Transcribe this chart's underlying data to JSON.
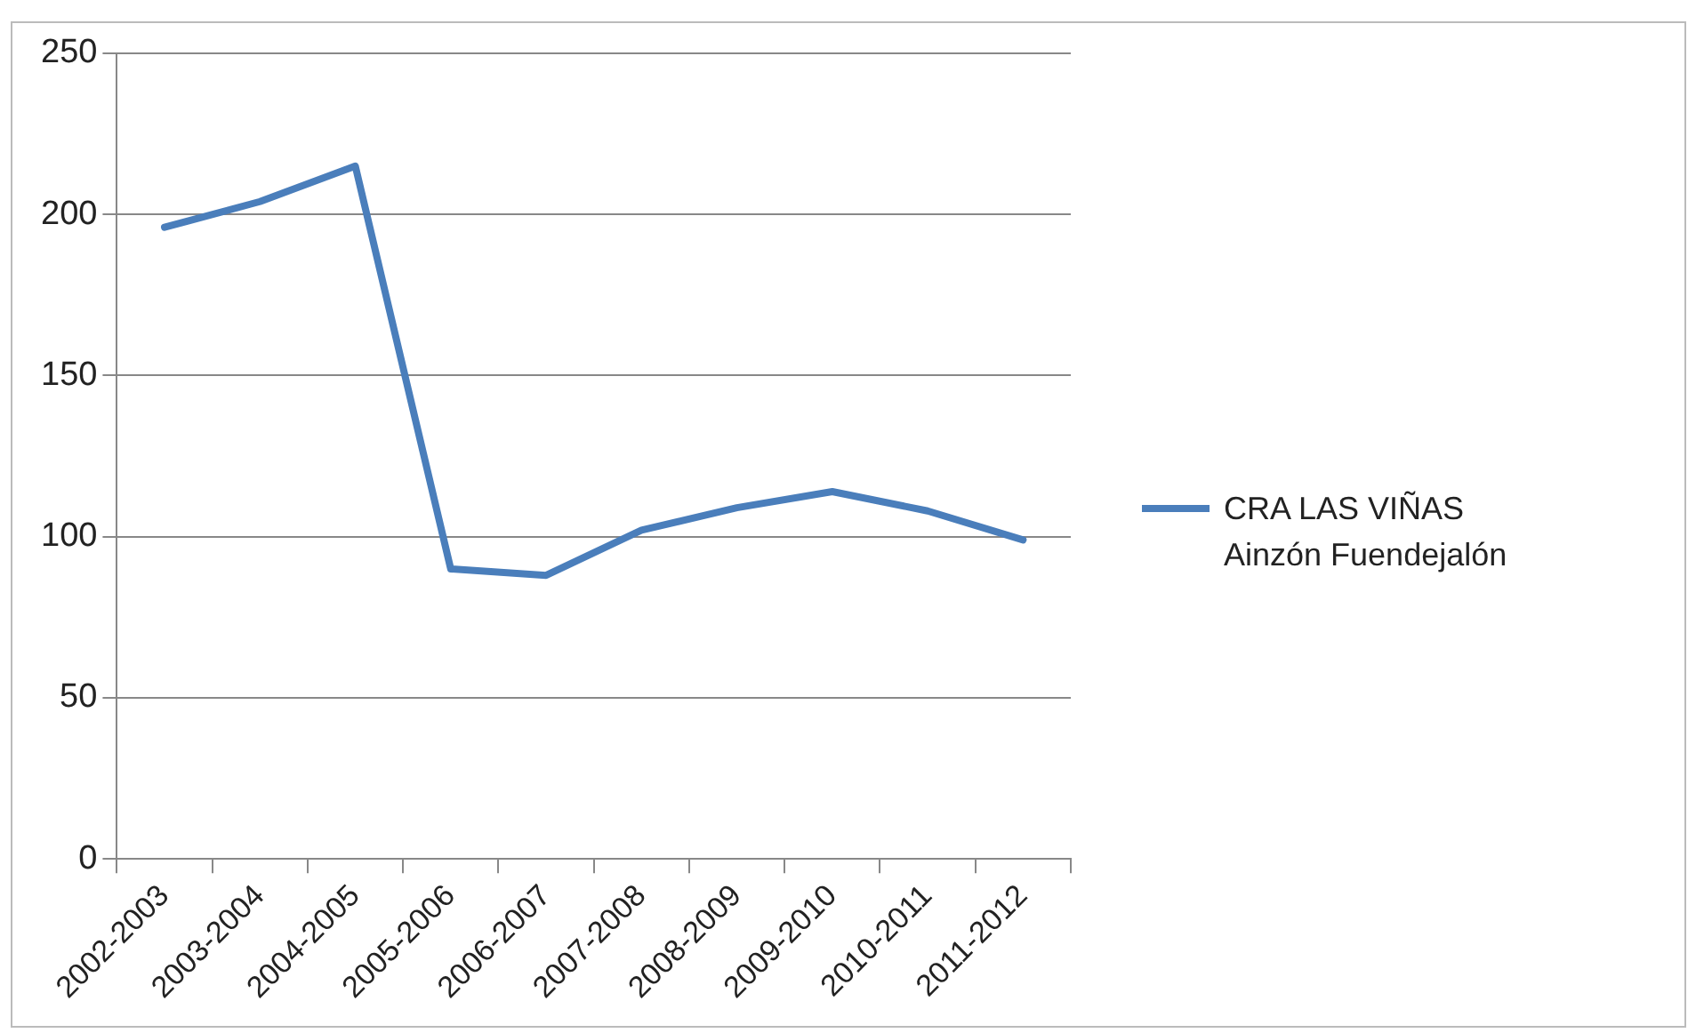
{
  "chart_data": {
    "type": "line",
    "categories": [
      "2002-2003",
      "2003-2004",
      "2004-2005",
      "2005-2006",
      "2006-2007",
      "2007-2008",
      "2008-2009",
      "2009-2010",
      "2010-2011",
      "2011-2012"
    ],
    "series": [
      {
        "name": "CRA LAS VIÑAS Ainzón Fuendejalón",
        "color": "#4a7ebb",
        "values": [
          196,
          204,
          215,
          90,
          88,
          102,
          109,
          114,
          108,
          99
        ]
      }
    ],
    "ylim": [
      0,
      250
    ],
    "yticks": [
      0,
      50,
      100,
      150,
      200,
      250
    ],
    "grid": "y",
    "legend": "right",
    "marker": "none"
  }
}
